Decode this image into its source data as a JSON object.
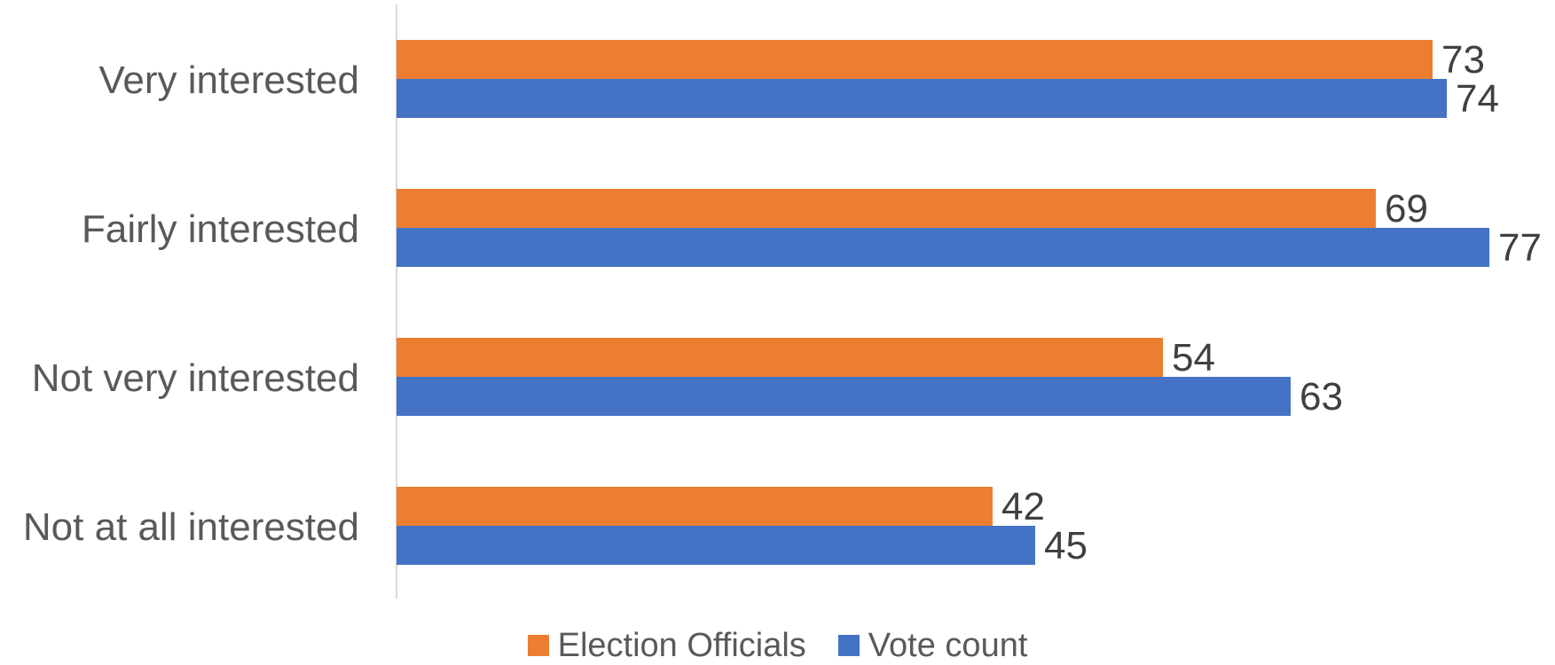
{
  "chart_data": {
    "type": "bar",
    "orientation": "horizontal",
    "categories": [
      "Very interested",
      "Fairly interested",
      "Not very interested",
      "Not at all interested"
    ],
    "series": [
      {
        "name": "Election Officials",
        "values": [
          73,
          69,
          54,
          42
        ],
        "color": "#ED7D31"
      },
      {
        "name": "Vote count",
        "values": [
          74,
          77,
          63,
          45
        ],
        "color": "#4472C4"
      }
    ],
    "xlim": [
      0,
      77
    ],
    "grid": false,
    "legend_position": "bottom"
  },
  "colors": {
    "axis_line": "#D9D9D9"
  }
}
